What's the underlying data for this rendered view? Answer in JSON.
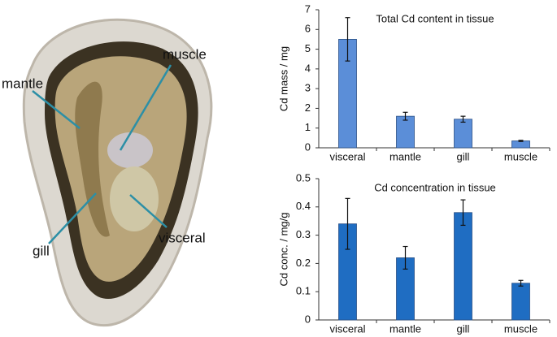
{
  "photo": {
    "labels": [
      "muscle",
      "mantle",
      "gill",
      "visceral"
    ]
  },
  "chart_data": [
    {
      "type": "bar",
      "title": "Total Cd content in tissue",
      "y_label": "Cd mass / mg",
      "categories": [
        "visceral",
        "mantle",
        "gill",
        "muscle"
      ],
      "values": [
        5.5,
        1.6,
        1.45,
        0.35
      ],
      "errors": [
        1.1,
        0.2,
        0.15,
        0.03
      ],
      "color": "#5b8ed8",
      "ylim": [
        0,
        7
      ],
      "yticks": [
        0,
        1,
        2,
        3,
        4,
        5,
        6,
        7
      ]
    },
    {
      "type": "bar",
      "title": "Cd concentration in tissue",
      "y_label": "Cd conc. / mg/g",
      "categories": [
        "visceral",
        "mantle",
        "gill",
        "muscle"
      ],
      "values": [
        0.34,
        0.22,
        0.38,
        0.13
      ],
      "errors": [
        0.09,
        0.04,
        0.045,
        0.01
      ],
      "color": "#1f6dc2",
      "ylim": [
        0,
        0.5
      ],
      "yticks": [
        0,
        0.1,
        0.2,
        0.3,
        0.4,
        0.5
      ]
    }
  ]
}
